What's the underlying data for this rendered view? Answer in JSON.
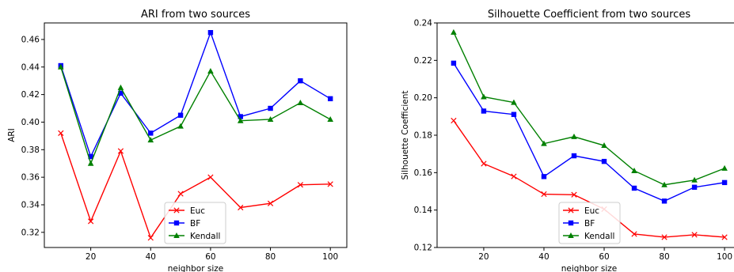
{
  "chart_data": [
    {
      "type": "line",
      "title": "ARI from two sources",
      "xlabel": "neighbor size",
      "ylabel": "ARI",
      "x": [
        10,
        20,
        30,
        40,
        50,
        60,
        70,
        80,
        90,
        100
      ],
      "xlim": [
        4.5,
        105.5
      ],
      "ylim": [
        0.309,
        0.472
      ],
      "xticks": [
        20,
        40,
        60,
        80,
        100
      ],
      "yticks": [
        0.32,
        0.34,
        0.36,
        0.38,
        0.4,
        0.42,
        0.44,
        0.46
      ],
      "ytick_labels": [
        "0.32",
        "0.34",
        "0.36",
        "0.38",
        "0.40",
        "0.42",
        "0.44",
        "0.46"
      ],
      "grid": false,
      "legend": "lower-center",
      "series": [
        {
          "name": "Euc",
          "color": "#ff0000",
          "marker": "x",
          "values": [
            0.392,
            0.328,
            0.379,
            0.316,
            0.348,
            0.36,
            0.338,
            0.341,
            0.3545,
            0.355
          ]
        },
        {
          "name": "BF",
          "color": "#0000ff",
          "marker": "square",
          "values": [
            0.441,
            0.375,
            0.421,
            0.392,
            0.405,
            0.465,
            0.404,
            0.41,
            0.43,
            0.417
          ]
        },
        {
          "name": "Kendall",
          "color": "#008000",
          "marker": "triangle",
          "values": [
            0.44,
            0.37,
            0.425,
            0.387,
            0.397,
            0.437,
            0.401,
            0.402,
            0.414,
            0.402
          ]
        }
      ]
    },
    {
      "type": "line",
      "title": "Silhouette Coefficient from two sources",
      "xlabel": "neighbor size",
      "ylabel": "Silhouette Coefficient",
      "x": [
        10,
        20,
        30,
        40,
        50,
        60,
        70,
        80,
        90,
        100
      ],
      "xlim": [
        4.5,
        105.5
      ],
      "ylim": [
        0.12,
        0.24
      ],
      "xticks": [
        20,
        40,
        60,
        80,
        100
      ],
      "yticks": [
        0.12,
        0.14,
        0.16,
        0.18,
        0.2,
        0.22,
        0.24
      ],
      "ytick_labels": [
        "0.12",
        "0.14",
        "0.16",
        "0.18",
        "0.20",
        "0.22",
        "0.24"
      ],
      "grid": false,
      "legend": "lower-center",
      "series": [
        {
          "name": "Euc",
          "color": "#ff0000",
          "marker": "x",
          "values": [
            0.1878,
            0.1648,
            0.158,
            0.1485,
            0.1482,
            0.1405,
            0.1272,
            0.1255,
            0.1268,
            0.1255
          ]
        },
        {
          "name": "BF",
          "color": "#0000ff",
          "marker": "square",
          "values": [
            0.2185,
            0.1929,
            0.1911,
            0.1579,
            0.169,
            0.166,
            0.1517,
            0.1448,
            0.1522,
            0.1547
          ]
        },
        {
          "name": "Kendall",
          "color": "#008000",
          "marker": "triangle",
          "values": [
            0.235,
            0.2005,
            0.1975,
            0.1755,
            0.1792,
            0.1745,
            0.161,
            0.1535,
            0.156,
            0.1623
          ]
        }
      ]
    }
  ]
}
